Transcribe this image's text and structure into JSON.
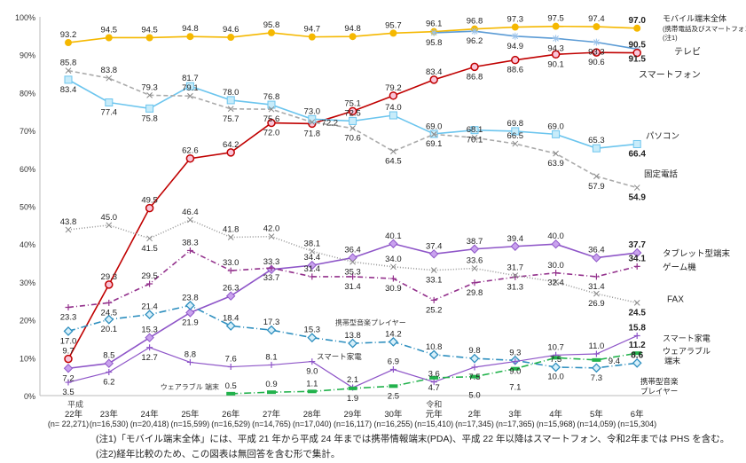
{
  "chart_data": {
    "type": "line",
    "ylim": [
      0,
      100
    ],
    "yticks": [
      "0%",
      "10%",
      "20%",
      "30%",
      "40%",
      "50%",
      "60%",
      "70%",
      "80%",
      "90%",
      "100%"
    ],
    "grid": false,
    "categories": [
      {
        "era": "平成",
        "year": "22年",
        "n": "(n= 22,271)"
      },
      {
        "era": "",
        "year": "23年",
        "n": "(n=16,530)"
      },
      {
        "era": "",
        "year": "24年",
        "n": "(n=20,418)"
      },
      {
        "era": "",
        "year": "25年",
        "n": "(n=15,599)"
      },
      {
        "era": "",
        "year": "26年",
        "n": "(n=16,529)"
      },
      {
        "era": "",
        "year": "27年",
        "n": "(n=14,765)"
      },
      {
        "era": "",
        "year": "28年",
        "n": "(n=17,040)"
      },
      {
        "era": "",
        "year": "29年",
        "n": "(n=16,117)"
      },
      {
        "era": "",
        "year": "30年",
        "n": "(n=16,255)"
      },
      {
        "era": "令和",
        "year": "元年",
        "n": "(n=15,410)"
      },
      {
        "era": "",
        "year": "2年",
        "n": "(n=17,345)"
      },
      {
        "era": "",
        "year": "3年",
        "n": "(n=17,365)"
      },
      {
        "era": "",
        "year": "4年",
        "n": "(n=15,968)"
      },
      {
        "era": "",
        "year": "5年",
        "n": "(n=14,059)"
      },
      {
        "era": "",
        "year": "6年",
        "n": "(n=15,304)"
      }
    ],
    "series": [
      {
        "name": "モバイル端末全体",
        "name_sub": "(携帯電話及びスマートフォン)",
        "name_note": "(注1)",
        "color": "#F5B800",
        "marker": "circle",
        "dash": "",
        "values": [
          93.2,
          94.5,
          94.5,
          94.8,
          94.6,
          95.8,
          94.7,
          94.8,
          95.7,
          96.1,
          96.8,
          97.3,
          97.5,
          97.4,
          97.0
        ]
      },
      {
        "name": "テレビ",
        "color": "#5B9BD5",
        "marker": "asterisk",
        "dash": "",
        "values": [
          null,
          null,
          null,
          null,
          null,
          null,
          null,
          null,
          null,
          95.8,
          96.2,
          94.9,
          94.3,
          93.3,
          91.5
        ]
      },
      {
        "name": "スマートフォン",
        "color": "#C00000",
        "marker": "ring",
        "dash": "",
        "values": [
          9.7,
          29.3,
          49.5,
          62.6,
          64.2,
          72.0,
          71.8,
          75.1,
          79.2,
          83.4,
          86.8,
          88.6,
          90.1,
          90.6,
          90.5
        ]
      },
      {
        "name": "パソコン",
        "color": "#6CC5EE",
        "marker": "square",
        "dash": "",
        "values": [
          83.4,
          77.4,
          75.8,
          81.7,
          78.0,
          76.8,
          73.0,
          72.5,
          74.0,
          69.1,
          70.1,
          69.8,
          69.0,
          65.3,
          66.4
        ]
      },
      {
        "name": "固定電話",
        "color": "#AAAAAA",
        "marker": "x",
        "dash": "5,3",
        "values": [
          85.8,
          83.8,
          79.3,
          79.1,
          75.7,
          75.6,
          72.2,
          70.6,
          64.5,
          69.0,
          68.1,
          66.5,
          63.9,
          57.9,
          54.9
        ]
      },
      {
        "name": "タブレット型端末",
        "color": "#8E55C8",
        "marker": "diamond",
        "dash": "",
        "values": [
          7.2,
          8.5,
          15.3,
          21.9,
          26.3,
          33.3,
          34.4,
          36.4,
          40.1,
          37.4,
          38.7,
          39.4,
          40.0,
          36.4,
          37.7
        ]
      },
      {
        "name": "ゲーム機",
        "color": "#93318C",
        "marker": "plus",
        "dash": "6,3,1,3",
        "values": [
          23.3,
          24.5,
          29.5,
          38.3,
          33.0,
          33.7,
          31.4,
          31.4,
          30.9,
          25.2,
          29.8,
          31.3,
          32.4,
          31.4,
          34.1
        ]
      },
      {
        "name": "FAX",
        "color": "#999999",
        "marker": "x",
        "dash": "1,2",
        "values": [
          43.8,
          45.0,
          41.5,
          46.4,
          41.8,
          42.0,
          38.1,
          35.3,
          34.0,
          33.1,
          33.6,
          31.7,
          30.0,
          26.9,
          24.5
        ]
      },
      {
        "name": "携帯型音楽プレイヤー",
        "color": "#2E8FBF",
        "marker": "odiamond",
        "dash": "8,3,1,3",
        "values": [
          17.0,
          20.1,
          21.4,
          23.8,
          18.4,
          17.3,
          15.3,
          13.8,
          14.2,
          10.8,
          9.8,
          9.3,
          7.5,
          7.3,
          8.6
        ]
      },
      {
        "name": "スマート家電",
        "color": "#8E55C8",
        "marker": "plus",
        "dash": "",
        "values": [
          3.5,
          6.2,
          12.7,
          8.8,
          7.6,
          8.1,
          9.0,
          2.1,
          6.9,
          3.6,
          7.5,
          9.0,
          10.7,
          11.0,
          15.8
        ]
      },
      {
        "name": "ウェアラブル端末",
        "color": "#22B24C",
        "marker": "dash",
        "dash": "8,3,1,3",
        "values": [
          null,
          null,
          null,
          null,
          0.5,
          0.9,
          1.1,
          1.9,
          2.5,
          4.7,
          5.0,
          7.1,
          10.0,
          9.4,
          11.2
        ]
      }
    ],
    "annotations": {
      "music_inline": "携帯型音楽プレイヤー",
      "smarthome_inline": "スマート家電",
      "wearable_inline": "ウェアラブル 端末",
      "wearable_end_1": "ウェアラブル",
      "wearable_end_2": "端末",
      "music_end_1": "携帯型音楽",
      "music_end_2": "プレイヤー"
    }
  },
  "notes": [
    "(注1)「モバイル端末全体」には、平成 21 年から平成 24 年までは携帯情報端末(PDA)、平成 22 年以降はスマートフォン、令和2年までは PHS を含む。",
    "(注2)経年比較のため、この図表は無回答を含む形で集計。"
  ]
}
